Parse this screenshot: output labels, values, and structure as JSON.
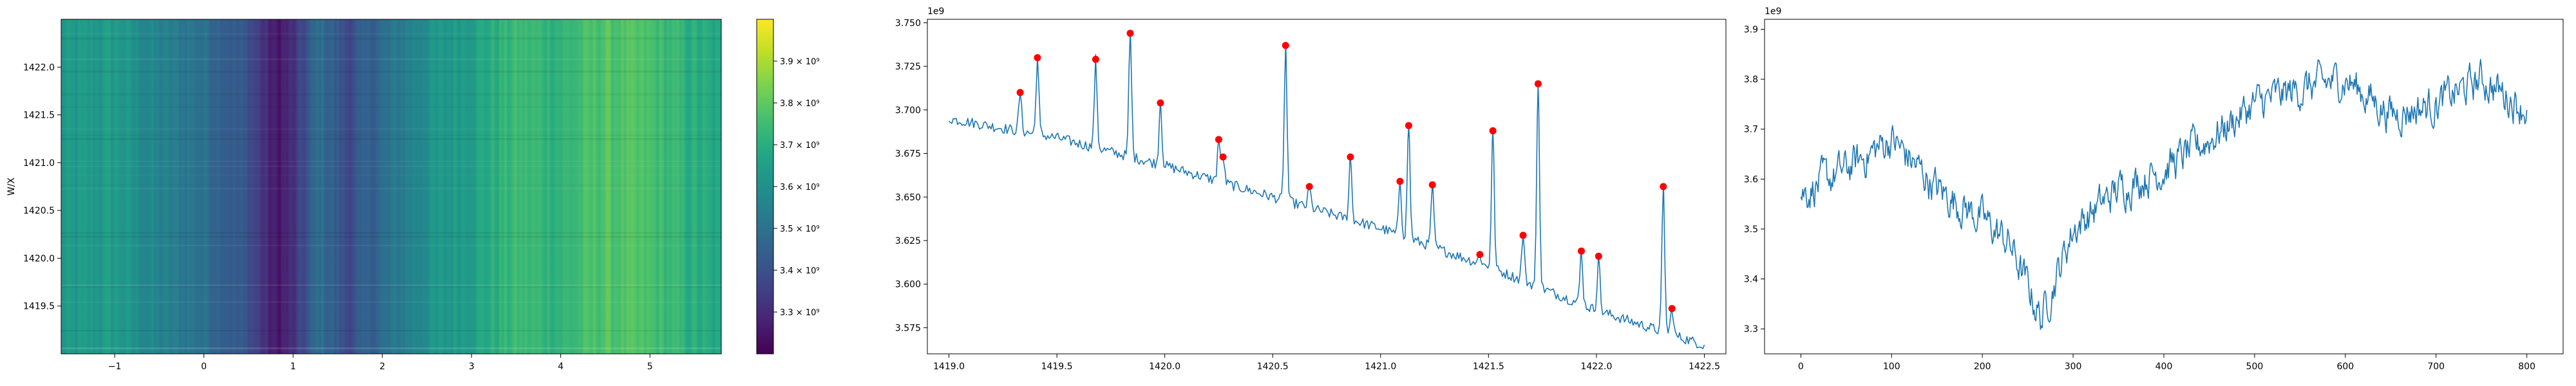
{
  "chart_data": [
    {
      "type": "heatmap",
      "ylabel": "W/X",
      "xlabel": "",
      "title": "",
      "colormap": "viridis",
      "xlim": [
        -1.6,
        5.8
      ],
      "ylim": [
        1419.0,
        1422.5
      ],
      "xticks": [
        -1,
        0,
        1,
        2,
        3,
        4,
        5
      ],
      "xtick_labels": [
        "−1",
        "0",
        "1",
        "2",
        "3",
        "4",
        "5"
      ],
      "yticks": [
        1419.5,
        1420.0,
        1420.5,
        1421.0,
        1421.5,
        1422.0
      ],
      "ytick_labels": [
        "1419.5",
        "1420.0",
        "1420.5",
        "1421.0",
        "1421.5",
        "1422.0"
      ],
      "column_profile": {
        "x": [
          -1.6,
          -1.0,
          -0.5,
          0.0,
          0.5,
          0.8,
          1.0,
          1.3,
          1.6,
          2.0,
          2.5,
          3.0,
          3.5,
          4.0,
          4.5,
          5.0,
          5.5,
          5.8
        ],
        "value": [
          3620000000.0,
          3640000000.0,
          3550000000.0,
          3500000000.0,
          3400000000.0,
          3250000000.0,
          3300000000.0,
          3500000000.0,
          3380000000.0,
          3480000000.0,
          3600000000.0,
          3660000000.0,
          3740000000.0,
          3720000000.0,
          3780000000.0,
          3760000000.0,
          3700000000.0,
          3660000000.0
        ]
      },
      "colorbar": {
        "vmin": 3200000000.0,
        "vmax": 4000000000.0,
        "ticks": [
          3300000000.0,
          3400000000.0,
          3500000000.0,
          3600000000.0,
          3700000000.0,
          3800000000.0,
          3900000000.0
        ],
        "tick_labels": [
          "3.3 × 10⁹",
          "3.4 × 10⁹",
          "3.5 × 10⁹",
          "3.6 × 10⁹",
          "3.7 × 10⁹",
          "3.8 × 10⁹",
          "3.9 × 10⁹"
        ]
      }
    },
    {
      "type": "line",
      "title": "",
      "xlabel": "",
      "ylabel": "",
      "offset_text": "1e9",
      "xlim": [
        1418.9,
        1422.6
      ],
      "ylim": [
        3560000000.0,
        3752000000.0
      ],
      "xticks": [
        1419.0,
        1419.5,
        1420.0,
        1420.5,
        1421.0,
        1421.5,
        1422.0,
        1422.5
      ],
      "xtick_labels": [
        "1419.0",
        "1419.5",
        "1420.0",
        "1420.5",
        "1421.0",
        "1421.5",
        "1422.0",
        "1422.5"
      ],
      "yticks": [
        3575000000.0,
        3600000000.0,
        3625000000.0,
        3650000000.0,
        3675000000.0,
        3700000000.0,
        3725000000.0,
        3750000000.0
      ],
      "ytick_labels": [
        "3.575",
        "3.600",
        "3.625",
        "3.650",
        "3.675",
        "3.700",
        "3.725",
        "3.750"
      ],
      "line_color": "#1f77b4",
      "peak_color": "#ff0000",
      "baseline": {
        "x": [
          1419.0,
          1419.5,
          1420.0,
          1420.5,
          1421.0,
          1421.5,
          1422.0,
          1422.5
        ],
        "y": [
          3695000000.0,
          3684000000.0,
          3668000000.0,
          3650000000.0,
          3632000000.0,
          3610000000.0,
          3585000000.0,
          3565000000.0
        ]
      },
      "peaks": {
        "x": [
          1419.33,
          1419.41,
          1419.68,
          1419.84,
          1419.98,
          1420.25,
          1420.27,
          1420.56,
          1420.67,
          1420.86,
          1421.09,
          1421.13,
          1421.24,
          1421.46,
          1421.52,
          1421.66,
          1421.73,
          1421.93,
          1422.01,
          1422.31,
          1422.35
        ],
        "y": [
          3710000000.0,
          3730000000.0,
          3729000000.0,
          3744000000.0,
          3704000000.0,
          3683000000.0,
          3673000000.0,
          3737000000.0,
          3656000000.0,
          3673000000.0,
          3659000000.0,
          3691000000.0,
          3657000000.0,
          3617000000.0,
          3688000000.0,
          3628000000.0,
          3715000000.0,
          3619000000.0,
          3616000000.0,
          3656000000.0,
          3586000000.0
        ]
      }
    },
    {
      "type": "line",
      "title": "",
      "xlabel": "",
      "ylabel": "",
      "offset_text": "1e9",
      "xlim": [
        -40,
        840
      ],
      "ylim": [
        3250000000.0,
        3920000000.0
      ],
      "xticks": [
        0,
        100,
        200,
        300,
        400,
        500,
        600,
        700,
        800
      ],
      "xtick_labels": [
        "0",
        "100",
        "200",
        "300",
        "400",
        "500",
        "600",
        "700",
        "800"
      ],
      "yticks": [
        3300000000.0,
        3400000000.0,
        3500000000.0,
        3600000000.0,
        3700000000.0,
        3800000000.0,
        3900000000.0
      ],
      "ytick_labels": [
        "3.3",
        "3.4",
        "3.5",
        "3.6",
        "3.7",
        "3.8",
        "3.9"
      ],
      "line_color": "#1f77b4",
      "trend": {
        "x": [
          0,
          50,
          100,
          150,
          200,
          230,
          265,
          300,
          350,
          400,
          450,
          500,
          550,
          600,
          650,
          700,
          750,
          800
        ],
        "y": [
          3570000000.0,
          3620000000.0,
          3680000000.0,
          3580000000.0,
          3520000000.0,
          3470000000.0,
          3320000000.0,
          3500000000.0,
          3580000000.0,
          3620000000.0,
          3680000000.0,
          3750000000.0,
          3780000000.0,
          3800000000.0,
          3730000000.0,
          3750000000.0,
          3800000000.0,
          3740000000.0
        ]
      }
    }
  ]
}
